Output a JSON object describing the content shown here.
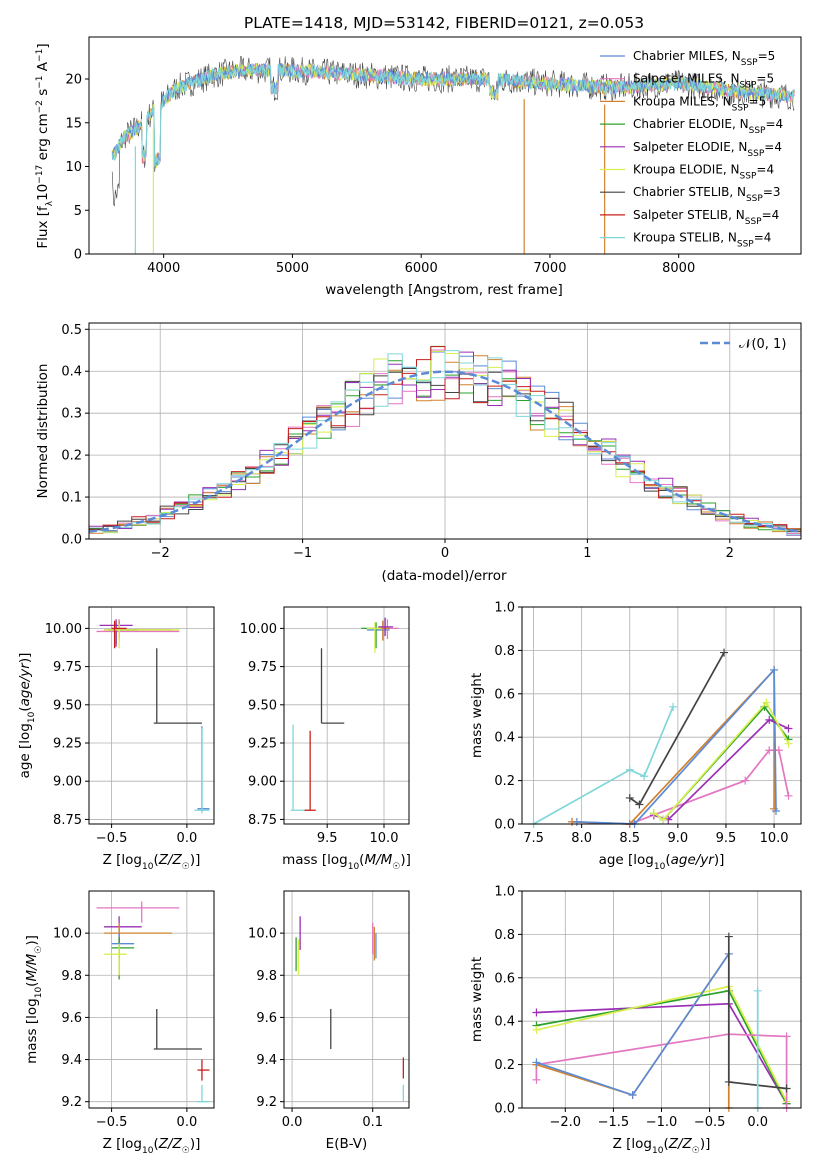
{
  "title": "PLATE=1418, MJD=53142, FIBERID=0121, z=0.053",
  "colors": {
    "Chabrier MILES": "#5b8bd6",
    "Salpeter MILES": "#e377c2",
    "Kroupa MILES": "#d2822e",
    "Chabrier ELODIE": "#2ca02c",
    "Salpeter ELODIE": "#9a2fb6",
    "Kroupa ELODIE": "#d8ef50",
    "Chabrier STELIB": "#444444",
    "Salpeter STELIB": "#c81f1f",
    "Kroupa STELIB": "#7fd6d9"
  },
  "chart_data": [
    {
      "type": "line",
      "panel": "spectrum",
      "xlabel": "wavelength [Angstrom, rest frame]",
      "ylabel": "Flux [fλ10⁻¹⁷ erg cm⁻² s⁻¹ A⁻¹]",
      "xlim": [
        3420,
        8950
      ],
      "ylim": [
        0,
        24.8
      ],
      "xticks": [
        4000,
        5000,
        6000,
        7000,
        8000
      ],
      "yticks": [
        0,
        5,
        10,
        15,
        20
      ],
      "legend_position": "top-right",
      "legend": [
        {
          "name": "Chabrier MILES",
          "label": "Chabrier MILES, N",
          "sub": "SSP",
          "n": "=5"
        },
        {
          "name": "Salpeter MILES",
          "label": "Salpeter MILES, N",
          "sub": "SSP",
          "n": "=5"
        },
        {
          "name": "Kroupa MILES",
          "label": "Kroupa MILES, N",
          "sub": "SSP",
          "n": "=5"
        },
        {
          "name": "Chabrier ELODIE",
          "label": "Chabrier ELODIE, N",
          "sub": "SSP",
          "n": "=4"
        },
        {
          "name": "Salpeter ELODIE",
          "label": "Salpeter ELODIE, N",
          "sub": "SSP",
          "n": "=4"
        },
        {
          "name": "Kroupa ELODIE",
          "label": "Kroupa ELODIE, N",
          "sub": "SSP",
          "n": "=4"
        },
        {
          "name": "Chabrier STELIB",
          "label": "Chabrier STELIB, N",
          "sub": "SSP",
          "n": "=3"
        },
        {
          "name": "Salpeter STELIB",
          "label": "Salpeter STELIB, N",
          "sub": "SSP",
          "n": "=4"
        },
        {
          "name": "Kroupa STELIB",
          "label": "Kroupa STELIB, N",
          "sub": "SSP",
          "n": "=4"
        }
      ],
      "continuum": [
        [
          3600,
          11
        ],
        [
          3700,
          13.5
        ],
        [
          3800,
          14.5
        ],
        [
          3900,
          16
        ],
        [
          4000,
          17.5
        ],
        [
          4100,
          19
        ],
        [
          4200,
          19.5
        ],
        [
          4400,
          20.5
        ],
        [
          4600,
          21
        ],
        [
          5000,
          21
        ],
        [
          5500,
          20.5
        ],
        [
          6000,
          20
        ],
        [
          6500,
          20
        ],
        [
          7000,
          19.5
        ],
        [
          7500,
          19
        ],
        [
          8000,
          19.5
        ],
        [
          8500,
          18.5
        ],
        [
          8900,
          18
        ]
      ],
      "drops": [
        [
          3780,
          0
        ],
        [
          3920,
          0
        ],
        [
          6800,
          0
        ],
        [
          7425,
          0
        ]
      ]
    },
    {
      "type": "histogram",
      "panel": "residuals",
      "xlabel": "(data-model)/error",
      "ylabel": "Normed distribution",
      "xlim": [
        -2.5,
        2.5
      ],
      "ylim": [
        0,
        0.515
      ],
      "xticks": [
        -2,
        -1,
        0,
        1,
        2
      ],
      "yticks": [
        0.0,
        0.1,
        0.2,
        0.3,
        0.4,
        0.5
      ],
      "bin_width": 0.1,
      "reference": {
        "label": "𝒩(0, 1)",
        "mean": 0,
        "sigma": 1
      }
    },
    {
      "type": "scatter",
      "panel": "age-vs-Z",
      "xlabel": "Z [log₁₀(Z/Z☉)]",
      "ylabel": "age  [log₁₀(age/yr)]",
      "xlim": [
        -0.65,
        0.18
      ],
      "ylim": [
        8.72,
        10.14
      ],
      "xticks": [
        -0.5,
        0.0
      ],
      "yticks": [
        8.75,
        9.0,
        9.25,
        9.5,
        9.75,
        10.0
      ],
      "points": [
        {
          "series": "Chabrier MILES",
          "x": 0.1,
          "y": 8.82,
          "xlo": 0.07,
          "xhi": 0.15,
          "ylo": 8.8,
          "yhi": 9.36
        },
        {
          "series": "Salpeter MILES",
          "x": -0.45,
          "y": 9.98,
          "xlo": -0.6,
          "xhi": -0.05,
          "ylo": 9.94,
          "yhi": 10.06
        },
        {
          "series": "Kroupa MILES",
          "x": -0.45,
          "y": 9.99,
          "xlo": -0.55,
          "xhi": -0.1,
          "ylo": 9.92,
          "yhi": 10.05
        },
        {
          "series": "Chabrier ELODIE",
          "x": -0.47,
          "y": 9.99,
          "xlo": -0.52,
          "xhi": -0.33,
          "ylo": 9.9,
          "yhi": 10.04
        },
        {
          "series": "Salpeter ELODIE",
          "x": -0.47,
          "y": 10.02,
          "xlo": -0.58,
          "xhi": -0.36,
          "ylo": 9.88,
          "yhi": 10.06
        },
        {
          "series": "Kroupa ELODIE",
          "x": -0.45,
          "y": 9.99,
          "xlo": -0.55,
          "xhi": -0.05,
          "ylo": 9.87,
          "yhi": 10.03
        },
        {
          "series": "Chabrier STELIB",
          "x": -0.2,
          "y": 9.38,
          "xlo": -0.22,
          "xhi": 0.1,
          "ylo": 9.38,
          "yhi": 9.87
        },
        {
          "series": "Salpeter STELIB",
          "x": -0.48,
          "y": 10.0,
          "xlo": -0.5,
          "xhi": -0.4,
          "ylo": 9.87,
          "yhi": 10.05
        },
        {
          "series": "Kroupa STELIB",
          "x": 0.1,
          "y": 8.81,
          "xlo": 0.05,
          "xhi": 0.15,
          "ylo": 8.79,
          "yhi": 9.35
        }
      ]
    },
    {
      "type": "scatter",
      "panel": "age-vs-mass",
      "xlabel": "mass [log₁₀(M/M☉)]",
      "ylabel": "",
      "xlim": [
        9.12,
        10.22
      ],
      "ylim": [
        8.72,
        10.14
      ],
      "xticks": [
        9.5,
        10.0
      ],
      "yticks": [
        8.75,
        9.0,
        9.25,
        9.5,
        9.75,
        10.0
      ],
      "points": [
        {
          "series": "Chabrier MILES",
          "x": 9.99,
          "y": 9.99,
          "xlo": 9.85,
          "xhi": 10.05,
          "ylo": 9.93,
          "yhi": 10.05
        },
        {
          "series": "Salpeter MILES",
          "x": 10.03,
          "y": 10.0,
          "xlo": 9.95,
          "xhi": 10.13,
          "ylo": 9.93,
          "yhi": 10.06
        },
        {
          "series": "Kroupa MILES",
          "x": 9.99,
          "y": 10.0,
          "xlo": 9.9,
          "xhi": 10.05,
          "ylo": 9.92,
          "yhi": 10.05
        },
        {
          "series": "Chabrier ELODIE",
          "x": 9.93,
          "y": 10.0,
          "xlo": 9.8,
          "xhi": 9.98,
          "ylo": 9.87,
          "yhi": 10.04
        },
        {
          "series": "Salpeter ELODIE",
          "x": 10.01,
          "y": 10.01,
          "xlo": 9.95,
          "xhi": 10.08,
          "ylo": 9.95,
          "yhi": 10.07
        },
        {
          "series": "Kroupa ELODIE",
          "x": 9.92,
          "y": 10.0,
          "xlo": 9.85,
          "xhi": 9.98,
          "ylo": 9.84,
          "yhi": 10.04
        },
        {
          "series": "Chabrier STELIB",
          "x": 9.45,
          "y": 9.38,
          "xlo": 9.45,
          "xhi": 9.65,
          "ylo": 9.38,
          "yhi": 9.87
        },
        {
          "series": "Salpeter STELIB",
          "x": 9.35,
          "y": 8.81,
          "xlo": 9.3,
          "xhi": 9.4,
          "ylo": 8.81,
          "yhi": 9.33
        },
        {
          "series": "Kroupa STELIB",
          "x": 9.2,
          "y": 8.81,
          "xlo": 9.18,
          "xhi": 9.3,
          "ylo": 8.81,
          "yhi": 9.37
        }
      ]
    },
    {
      "type": "line",
      "panel": "mass-weight-vs-age",
      "xlabel": "age  [log₁₀(age/yr)]",
      "ylabel": "mass weight",
      "xlim": [
        7.38,
        10.28
      ],
      "ylim": [
        0,
        1
      ],
      "xticks": [
        7.5,
        8.0,
        8.5,
        9.0,
        9.5,
        10.0
      ],
      "yticks": [
        0.0,
        0.2,
        0.4,
        0.6,
        0.8,
        1.0
      ],
      "series": [
        {
          "name": "Salpeter MILES",
          "points": [
            [
              7.9,
              0.01
            ],
            [
              8.5,
              0.0
            ],
            [
              9.7,
              0.2
            ],
            [
              9.95,
              0.34
            ],
            [
              10.05,
              0.34
            ],
            [
              10.15,
              0.13
            ]
          ]
        },
        {
          "name": "Kroupa MILES",
          "points": [
            [
              7.9,
              0.01
            ],
            [
              8.5,
              0.0
            ],
            [
              10.0,
              0.71
            ],
            [
              10.0,
              0.07
            ]
          ]
        },
        {
          "name": "Chabrier MILES",
          "points": [
            [
              7.95,
              0.01
            ],
            [
              8.55,
              0.0
            ],
            [
              10.0,
              0.71
            ],
            [
              10.02,
              0.06
            ]
          ]
        },
        {
          "name": "Chabrier ELODIE",
          "points": [
            [
              8.75,
              0.05
            ],
            [
              8.85,
              0.02
            ],
            [
              9.9,
              0.54
            ],
            [
              10.15,
              0.39
            ]
          ]
        },
        {
          "name": "Salpeter ELODIE",
          "points": [
            [
              8.75,
              0.04
            ],
            [
              8.9,
              0.02
            ],
            [
              9.95,
              0.48
            ],
            [
              10.15,
              0.44
            ]
          ]
        },
        {
          "name": "Kroupa ELODIE",
          "points": [
            [
              8.75,
              0.05
            ],
            [
              8.85,
              0.02
            ],
            [
              9.92,
              0.56
            ],
            [
              10.15,
              0.37
            ]
          ]
        },
        {
          "name": "Chabrier STELIB",
          "points": [
            [
              8.5,
              0.12
            ],
            [
              8.6,
              0.09
            ],
            [
              9.48,
              0.79
            ]
          ]
        },
        {
          "name": "Kroupa STELIB",
          "points": [
            [
              7.5,
              0.0
            ],
            [
              8.5,
              0.25
            ],
            [
              8.65,
              0.22
            ],
            [
              8.95,
              0.54
            ]
          ]
        }
      ]
    },
    {
      "type": "scatter",
      "panel": "mass-vs-Z",
      "xlabel": "Z [log₁₀(Z/Z☉)]",
      "ylabel": "mass [log₁₀(M/M☉)]",
      "xlim": [
        -0.65,
        0.18
      ],
      "ylim": [
        9.17,
        10.2
      ],
      "xticks": [
        -0.5,
        0.0
      ],
      "yticks": [
        9.2,
        9.4,
        9.6,
        9.8,
        10.0
      ],
      "points": [
        {
          "series": "Salpeter MILES",
          "x": -0.3,
          "y": 10.12,
          "xlo": -0.6,
          "xhi": -0.05,
          "ylo": 10.05,
          "yhi": 10.15
        },
        {
          "series": "Salpeter ELODIE",
          "x": -0.45,
          "y": 10.03,
          "xlo": -0.55,
          "xhi": -0.3,
          "ylo": 9.95,
          "yhi": 10.08
        },
        {
          "series": "Kroupa MILES",
          "x": -0.45,
          "y": 10.0,
          "xlo": -0.55,
          "xhi": -0.1,
          "ylo": 9.92,
          "yhi": 10.05
        },
        {
          "series": "Chabrier MILES",
          "x": -0.45,
          "y": 9.95,
          "xlo": -0.5,
          "xhi": -0.35,
          "ylo": 9.88,
          "yhi": 10.0
        },
        {
          "series": "Chabrier ELODIE",
          "x": -0.45,
          "y": 9.93,
          "xlo": -0.5,
          "xhi": -0.35,
          "ylo": 9.78,
          "yhi": 9.98
        },
        {
          "series": "Kroupa ELODIE",
          "x": -0.45,
          "y": 9.9,
          "xlo": -0.55,
          "xhi": -0.4,
          "ylo": 9.8,
          "yhi": 9.95
        },
        {
          "series": "Chabrier STELIB",
          "x": -0.2,
          "y": 9.45,
          "xlo": -0.22,
          "xhi": 0.1,
          "ylo": 9.45,
          "yhi": 9.64
        },
        {
          "series": "Salpeter STELIB",
          "x": 0.1,
          "y": 9.35,
          "xlo": 0.07,
          "xhi": 0.15,
          "ylo": 9.3,
          "yhi": 9.4
        },
        {
          "series": "Kroupa STELIB",
          "x": 0.1,
          "y": 9.2,
          "xlo": 0.07,
          "xhi": 0.15,
          "ylo": 9.2,
          "yhi": 9.28
        }
      ]
    },
    {
      "type": "scatter",
      "panel": "mass-vs-EBV",
      "xlabel": "E(B-V)",
      "ylabel": "",
      "xlim": [
        -0.01,
        0.145
      ],
      "ylim": [
        9.17,
        10.2
      ],
      "xticks": [
        0.0,
        0.1
      ],
      "yticks": [
        9.2,
        9.4,
        9.6,
        9.8,
        10.0
      ],
      "points": [
        {
          "series": "Salpeter ELODIE",
          "x": 0.01,
          "y": 10.0,
          "ylo": 9.92,
          "yhi": 10.08
        },
        {
          "series": "Chabrier ELODIE",
          "x": 0.005,
          "y": 9.9,
          "ylo": 9.82,
          "yhi": 9.98
        },
        {
          "series": "Kroupa ELODIE",
          "x": 0.008,
          "y": 9.9,
          "ylo": 9.8,
          "yhi": 9.97
        },
        {
          "series": "Salpeter MILES",
          "x": 0.1,
          "y": 10.0,
          "ylo": 9.9,
          "yhi": 10.05
        },
        {
          "series": "Kroupa MILES",
          "x": 0.102,
          "y": 9.97,
          "ylo": 9.87,
          "yhi": 10.03
        },
        {
          "series": "Chabrier MILES",
          "x": 0.104,
          "y": 9.95,
          "ylo": 9.88,
          "yhi": 10.0
        },
        {
          "series": "Chabrier STELIB",
          "x": 0.048,
          "y": 9.55,
          "ylo": 9.45,
          "yhi": 9.64
        },
        {
          "series": "Salpeter STELIB",
          "x": 0.138,
          "y": 9.35,
          "ylo": 9.31,
          "yhi": 9.41
        },
        {
          "series": "Kroupa STELIB",
          "x": 0.138,
          "y": 9.22,
          "ylo": 9.2,
          "yhi": 9.28
        }
      ]
    },
    {
      "type": "line",
      "panel": "mass-weight-vs-Z",
      "xlabel": "Z [log₁₀(Z/Z☉)]",
      "ylabel": "mass weight",
      "xlim": [
        -2.45,
        0.45
      ],
      "ylim": [
        0,
        1
      ],
      "xticks": [
        -2.0,
        -1.5,
        -1.0,
        -0.5,
        0.0
      ],
      "yticks": [
        0.0,
        0.2,
        0.4,
        0.6,
        0.8,
        1.0
      ],
      "series": [
        {
          "name": "Salpeter ELODIE",
          "points": [
            [
              -2.3,
              0.44
            ],
            [
              -0.3,
              0.48
            ],
            [
              0.3,
              0.02
            ]
          ]
        },
        {
          "name": "Chabrier ELODIE",
          "points": [
            [
              -2.3,
              0.38
            ],
            [
              -0.3,
              0.54
            ],
            [
              0.3,
              0.02
            ]
          ]
        },
        {
          "name": "Kroupa ELODIE",
          "points": [
            [
              -2.3,
              0.36
            ],
            [
              -0.3,
              0.56
            ],
            [
              0.3,
              0.03
            ]
          ]
        },
        {
          "name": "Salpeter MILES",
          "points": [
            [
              -2.3,
              0.13
            ],
            [
              -2.3,
              0.2
            ],
            [
              -0.3,
              0.34
            ],
            [
              0.3,
              0.33
            ],
            [
              0.3,
              0.0
            ]
          ]
        },
        {
          "name": "Kroupa MILES",
          "points": [
            [
              -2.3,
              0.2
            ],
            [
              -1.3,
              0.06
            ],
            [
              -0.3,
              0.71
            ],
            [
              -0.3,
              0.0
            ]
          ]
        },
        {
          "name": "Chabrier MILES",
          "points": [
            [
              -2.3,
              0.21
            ],
            [
              -1.3,
              0.06
            ],
            [
              -0.3,
              0.71
            ]
          ]
        },
        {
          "name": "Chabrier STELIB",
          "points": [
            [
              -0.3,
              0.79
            ],
            [
              -0.3,
              0.12
            ],
            [
              0.3,
              0.09
            ]
          ]
        },
        {
          "name": "Kroupa STELIB",
          "points": [
            [
              0.0,
              0.54
            ],
            [
              0.0,
              0.0
            ]
          ]
        }
      ]
    }
  ]
}
